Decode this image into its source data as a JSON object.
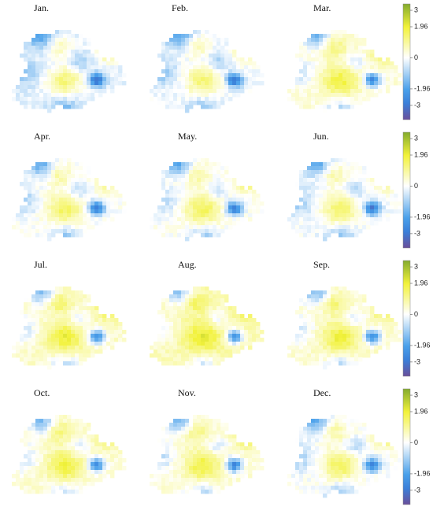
{
  "panels": [
    {
      "title": "Jan."
    },
    {
      "title": "Feb."
    },
    {
      "title": "Mar."
    },
    {
      "title": "Apr."
    },
    {
      "title": "May."
    },
    {
      "title": "Jun."
    },
    {
      "title": "Jul."
    },
    {
      "title": "Aug."
    },
    {
      "title": "Sep."
    },
    {
      "title": "Oct."
    },
    {
      "title": "Nov."
    },
    {
      "title": "Dec."
    }
  ],
  "colorbar": {
    "lim": [
      -3.9,
      3.4
    ],
    "ticks": [
      3,
      1.96,
      0,
      -1.96,
      -3
    ]
  }
}
